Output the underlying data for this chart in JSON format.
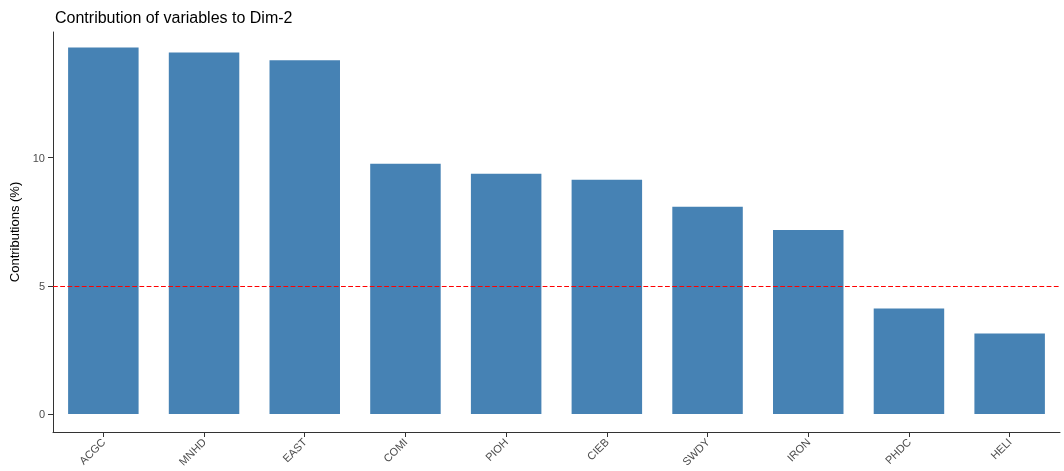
{
  "chart_data": {
    "type": "bar",
    "title": "Contribution of variables to Dim-2",
    "ylabel": "Contributions (%)",
    "categories": [
      "ACGC",
      "MNHD",
      "EAST",
      "COMI",
      "PIOH",
      "CIEB",
      "SWDY",
      "IRON",
      "PHDC",
      "HELI"
    ],
    "values": [
      14.3,
      14.1,
      13.8,
      9.76,
      9.37,
      9.14,
      8.08,
      7.18,
      4.12,
      3.14
    ],
    "color": "#4682b4",
    "ylim": [
      -0.7,
      14.9
    ],
    "yticks": [
      0,
      5,
      10
    ],
    "grid": false,
    "ref_lines": [
      {
        "axis": "y",
        "value": 5,
        "color": "#ff0000",
        "line_style": "dashed"
      }
    ]
  }
}
